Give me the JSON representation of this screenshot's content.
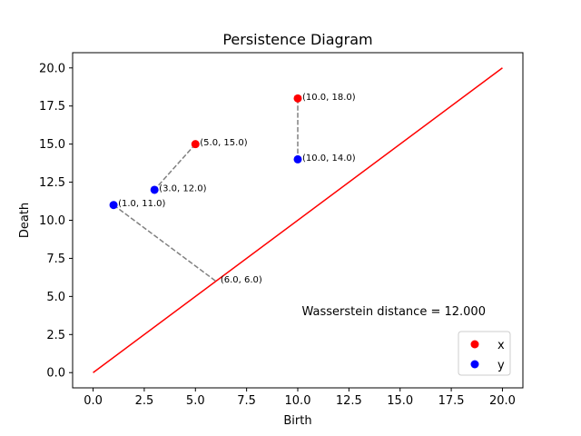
{
  "chart_data": {
    "type": "scatter",
    "title": "Persistence Diagram",
    "xlabel": "Birth",
    "ylabel": "Death",
    "xlim": [
      -1.0,
      21.0
    ],
    "ylim": [
      -1.0,
      21.0
    ],
    "x_ticks": [
      0.0,
      2.5,
      5.0,
      7.5,
      10.0,
      12.5,
      15.0,
      17.5,
      20.0
    ],
    "y_ticks": [
      0.0,
      2.5,
      5.0,
      7.5,
      10.0,
      12.5,
      15.0,
      17.5,
      20.0
    ],
    "tick_format": 1,
    "grid": false,
    "legend_position": "lower-right",
    "series": [
      {
        "name": "x",
        "color": "#ff0000",
        "points": [
          {
            "x": 5.0,
            "y": 15.0,
            "label": "(5.0, 15.0)"
          },
          {
            "x": 10.0,
            "y": 18.0,
            "label": "(10.0, 18.0)"
          }
        ]
      },
      {
        "name": "y",
        "color": "#0000ff",
        "points": [
          {
            "x": 1.0,
            "y": 11.0,
            "label": "(1.0, 11.0)"
          },
          {
            "x": 3.0,
            "y": 12.0,
            "label": "(3.0, 12.0)"
          },
          {
            "x": 10.0,
            "y": 14.0,
            "label": "(10.0, 14.0)"
          }
        ]
      }
    ],
    "diagonal": {
      "from": [
        0.0,
        0.0
      ],
      "to": [
        20.0,
        20.0
      ],
      "color": "#ff0000"
    },
    "matchings": [
      {
        "from": [
          5.0,
          15.0
        ],
        "to": [
          3.0,
          12.0
        ]
      },
      {
        "from": [
          10.0,
          18.0
        ],
        "to": [
          10.0,
          14.0
        ]
      },
      {
        "from": [
          1.0,
          11.0
        ],
        "to": [
          6.0,
          6.0
        ]
      }
    ],
    "matching_color": "#808080",
    "extra_labels": [
      {
        "x": 6.0,
        "y": 6.0,
        "label": "(6.0, 6.0)"
      }
    ],
    "annotation": {
      "text": "Wasserstein distance = 12.000",
      "x": 10.2,
      "y": 4.0
    }
  }
}
